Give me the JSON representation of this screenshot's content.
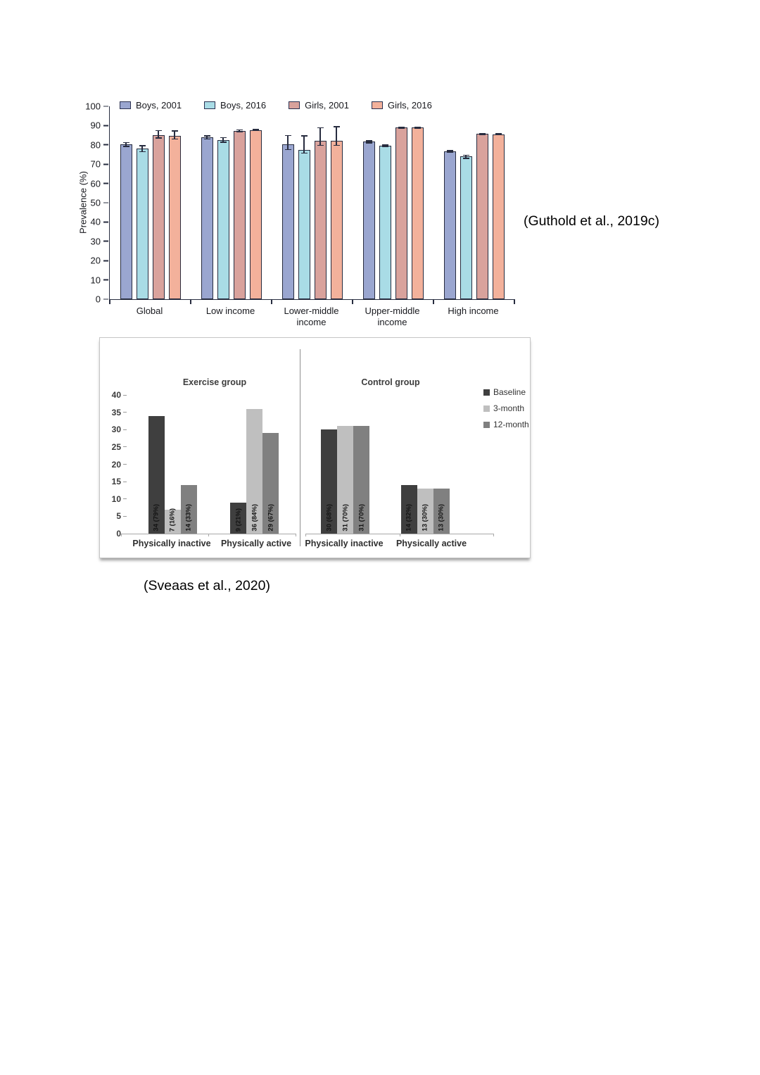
{
  "figures": {
    "prevalence": {
      "citation": "(Guthold et al., 2019c)"
    },
    "activity": {
      "citation": "(Sveaas et al., 2020)"
    }
  },
  "chart_data": [
    {
      "type": "bar",
      "title": "",
      "xlabel": "",
      "ylabel": "Prevalence (%)",
      "ylim": [
        0,
        100
      ],
      "yticks": [
        0,
        10,
        20,
        30,
        40,
        50,
        60,
        70,
        80,
        90,
        100
      ],
      "grid": false,
      "legend_position": "top",
      "error_bars": true,
      "categories": [
        "Global",
        "Low income",
        "Lower-middle income",
        "Upper-middle income",
        "High income"
      ],
      "series": [
        {
          "name": "Boys, 2001",
          "color": "#9aa6d0",
          "values": [
            80.2,
            83.8,
            80.2,
            81.6,
            76.6
          ],
          "err_up": [
            1.3,
            1.2,
            5.0,
            0.8,
            0.8
          ],
          "err_down": [
            1.3,
            1.0,
            3.0,
            0.8,
            0.8
          ]
        },
        {
          "name": "Boys, 2016",
          "color": "#a9dce6",
          "values": [
            78.0,
            82.6,
            77.5,
            79.6,
            74.0
          ],
          "err_up": [
            1.8,
            1.5,
            7.5,
            0.6,
            1.0
          ],
          "err_down": [
            1.8,
            1.5,
            2.0,
            0.6,
            1.2
          ]
        },
        {
          "name": "Girls, 2001",
          "color": "#d9a29c",
          "values": [
            85.2,
            87.2,
            82.2,
            89.0,
            85.6
          ],
          "err_up": [
            2.5,
            0.9,
            7.0,
            0.5,
            0.5
          ],
          "err_down": [
            2.0,
            0.7,
            2.8,
            0.5,
            0.5
          ]
        },
        {
          "name": "Girls, 2016",
          "color": "#f3b19b",
          "values": [
            84.8,
            87.6,
            82.0,
            89.0,
            85.5
          ],
          "err_up": [
            2.8,
            0.7,
            7.8,
            0.5,
            0.6
          ],
          "err_down": [
            2.0,
            0.5,
            2.5,
            0.5,
            0.6
          ]
        }
      ]
    },
    {
      "type": "bar",
      "title": "",
      "ylim": [
        0,
        40
      ],
      "yticks": [
        0,
        5,
        10,
        15,
        20,
        25,
        30,
        35,
        40
      ],
      "grid": false,
      "legend_position": "right",
      "legend": [
        "Baseline",
        "3-month",
        "12-month"
      ],
      "legend_colors": [
        "#3f3f3f",
        "#bfbfbf",
        "#808080"
      ],
      "panels": [
        {
          "title": "Exercise group",
          "categories": [
            "Physically inactive",
            "Physically active"
          ],
          "series": [
            {
              "name": "Baseline",
              "color": "#3f3f3f",
              "values": [
                34,
                9
              ],
              "labels": [
                "34 (79%)",
                "9 (21%)"
              ]
            },
            {
              "name": "3-month",
              "color": "#bfbfbf",
              "values": [
                7,
                36
              ],
              "labels": [
                "7 (16%)",
                "36 (84%)"
              ]
            },
            {
              "name": "12-month",
              "color": "#808080",
              "values": [
                14,
                29
              ],
              "labels": [
                "14 (33%)",
                "29 (67%)"
              ]
            }
          ]
        },
        {
          "title": "Control group",
          "categories": [
            "Physically inactive",
            "Physically active"
          ],
          "series": [
            {
              "name": "Baseline",
              "color": "#3f3f3f",
              "values": [
                30,
                14
              ],
              "labels": [
                "30 (68%)",
                "14 (32%)"
              ]
            },
            {
              "name": "3-month",
              "color": "#bfbfbf",
              "values": [
                31,
                13
              ],
              "labels": [
                "31 (70%)",
                "13 (30%)"
              ]
            },
            {
              "name": "12-month",
              "color": "#808080",
              "values": [
                31,
                13
              ],
              "labels": [
                "31 (70%)",
                "13 (30%)"
              ]
            }
          ]
        }
      ]
    }
  ]
}
